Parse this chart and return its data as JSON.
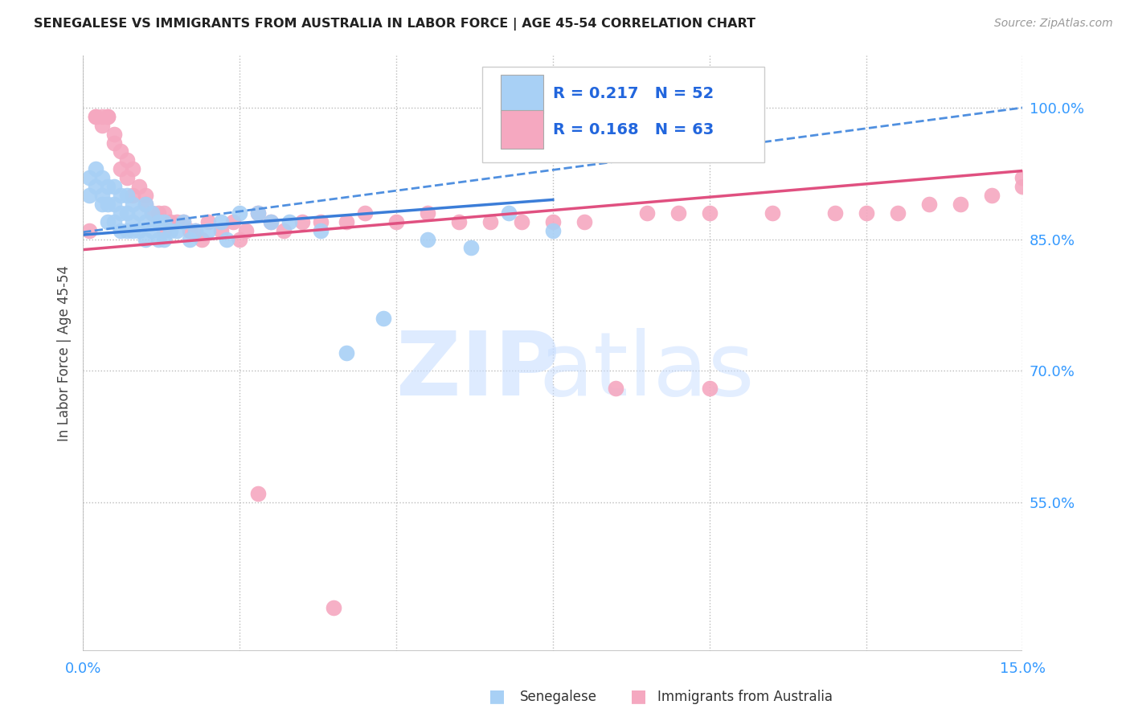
{
  "title": "SENEGALESE VS IMMIGRANTS FROM AUSTRALIA IN LABOR FORCE | AGE 45-54 CORRELATION CHART",
  "source": "Source: ZipAtlas.com",
  "ylabel": "In Labor Force | Age 45-54",
  "xlim": [
    0.0,
    0.15
  ],
  "ylim": [
    0.38,
    1.06
  ],
  "yticks_right": [
    0.55,
    0.7,
    0.85,
    1.0
  ],
  "ytick_right_labels": [
    "55.0%",
    "70.0%",
    "85.0%",
    "100.0%"
  ],
  "R1": "0.217",
  "N1": "52",
  "R2": "0.168",
  "N2": "63",
  "blue_scatter": "#A8D0F5",
  "pink_scatter": "#F5A8C0",
  "trend_blue_solid": "#3B7DD8",
  "trend_pink_solid": "#E05080",
  "trend_blue_dash": "#5090E0",
  "background": "#FFFFFF",
  "senegalese_x": [
    0.001,
    0.001,
    0.002,
    0.002,
    0.003,
    0.003,
    0.003,
    0.004,
    0.004,
    0.004,
    0.005,
    0.005,
    0.005,
    0.006,
    0.006,
    0.006,
    0.007,
    0.007,
    0.007,
    0.008,
    0.008,
    0.008,
    0.009,
    0.009,
    0.01,
    0.01,
    0.01,
    0.011,
    0.011,
    0.012,
    0.012,
    0.013,
    0.013,
    0.014,
    0.015,
    0.016,
    0.017,
    0.018,
    0.02,
    0.022,
    0.023,
    0.025,
    0.028,
    0.03,
    0.033,
    0.038,
    0.042,
    0.048,
    0.055,
    0.062,
    0.068,
    0.075
  ],
  "senegalese_y": [
    0.92,
    0.9,
    0.93,
    0.91,
    0.92,
    0.9,
    0.89,
    0.91,
    0.89,
    0.87,
    0.91,
    0.89,
    0.87,
    0.9,
    0.88,
    0.86,
    0.9,
    0.88,
    0.86,
    0.89,
    0.87,
    0.86,
    0.88,
    0.86,
    0.89,
    0.87,
    0.85,
    0.88,
    0.86,
    0.87,
    0.85,
    0.87,
    0.85,
    0.86,
    0.86,
    0.87,
    0.85,
    0.86,
    0.86,
    0.87,
    0.85,
    0.88,
    0.88,
    0.87,
    0.87,
    0.86,
    0.72,
    0.76,
    0.85,
    0.84,
    0.88,
    0.86
  ],
  "australia_x": [
    0.001,
    0.002,
    0.002,
    0.003,
    0.003,
    0.004,
    0.004,
    0.005,
    0.005,
    0.006,
    0.006,
    0.007,
    0.007,
    0.008,
    0.008,
    0.009,
    0.01,
    0.01,
    0.011,
    0.012,
    0.013,
    0.013,
    0.014,
    0.015,
    0.016,
    0.017,
    0.018,
    0.019,
    0.02,
    0.022,
    0.024,
    0.025,
    0.026,
    0.028,
    0.03,
    0.032,
    0.035,
    0.038,
    0.042,
    0.045,
    0.05,
    0.055,
    0.06,
    0.065,
    0.07,
    0.075,
    0.08,
    0.09,
    0.095,
    0.1,
    0.11,
    0.12,
    0.125,
    0.13,
    0.135,
    0.14,
    0.145,
    0.15,
    0.15,
    0.1,
    0.085,
    0.028,
    0.04
  ],
  "australia_y": [
    0.86,
    0.99,
    0.99,
    0.99,
    0.98,
    0.99,
    0.99,
    0.97,
    0.96,
    0.95,
    0.93,
    0.94,
    0.92,
    0.93,
    0.9,
    0.91,
    0.9,
    0.89,
    0.88,
    0.88,
    0.88,
    0.86,
    0.87,
    0.87,
    0.87,
    0.86,
    0.86,
    0.85,
    0.87,
    0.86,
    0.87,
    0.85,
    0.86,
    0.88,
    0.87,
    0.86,
    0.87,
    0.87,
    0.87,
    0.88,
    0.87,
    0.88,
    0.87,
    0.87,
    0.87,
    0.87,
    0.87,
    0.88,
    0.88,
    0.88,
    0.88,
    0.88,
    0.88,
    0.88,
    0.89,
    0.89,
    0.9,
    0.91,
    0.92,
    0.68,
    0.68,
    0.56,
    0.43
  ],
  "trend_blue_x0": 0.0,
  "trend_blue_y0": 0.855,
  "trend_blue_x1": 0.075,
  "trend_blue_y1": 0.895,
  "trend_pink_x0": 0.0,
  "trend_pink_y0": 0.838,
  "trend_pink_x1": 0.15,
  "trend_pink_y1": 0.928,
  "trend_dash_x0": 0.0,
  "trend_dash_y0": 0.858,
  "trend_dash_x1": 0.15,
  "trend_dash_y1": 1.0
}
